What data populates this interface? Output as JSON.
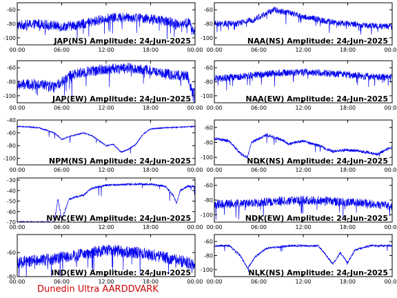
{
  "credit": "Dunedin Ultra AARDDVARK",
  "colors": {
    "trace": "#0000ee",
    "axes": "#000000",
    "credit": "#cc0000",
    "background": "#ffffff"
  },
  "chart_data": [
    {
      "type": "line",
      "title": "JAP(NS) Amplitude: 24-Jun-2025",
      "xlim": [
        0,
        24
      ],
      "xticks": [
        "00:00",
        "06:00",
        "12:00",
        "18:00",
        "00:00"
      ],
      "ylim": [
        -110,
        -50
      ],
      "yticks": [
        -60,
        -80,
        -100
      ],
      "series": [
        {
          "baseline": [
            [
              0,
              -82
            ],
            [
              3,
              -80
            ],
            [
              6,
              -84
            ],
            [
              8,
              -82
            ],
            [
              10,
              -78
            ],
            [
              12,
              -72
            ],
            [
              15,
              -70
            ],
            [
              18,
              -73
            ],
            [
              20,
              -76
            ],
            [
              22,
              -80
            ],
            [
              23.3,
              -78
            ],
            [
              23.6,
              -90
            ],
            [
              24,
              -90
            ]
          ],
          "spread": 14
        }
      ]
    },
    {
      "type": "line",
      "title": "NAA(NS) Amplitude: 24-Jun-2025",
      "xlim": [
        0,
        24
      ],
      "xticks": [
        "00:00",
        "06:00",
        "12:00",
        "18:00",
        "00:00"
      ],
      "ylim": [
        -110,
        -50
      ],
      "yticks": [
        -60,
        -80,
        -100
      ],
      "series": [
        {
          "baseline": [
            [
              0,
              -80
            ],
            [
              3,
              -80
            ],
            [
              5,
              -75
            ],
            [
              7,
              -66
            ],
            [
              8,
              -60
            ],
            [
              10,
              -64
            ],
            [
              12,
              -70
            ],
            [
              16,
              -78
            ],
            [
              20,
              -82
            ],
            [
              24,
              -84
            ]
          ],
          "spread": 9
        }
      ]
    },
    {
      "type": "line",
      "title": "JAP(EW) Amplitude: 24-Jun-2025",
      "xlim": [
        0,
        24
      ],
      "xticks": [
        "00:00",
        "06:00",
        "12:00",
        "18:00",
        "00:00"
      ],
      "ylim": [
        -110,
        -50
      ],
      "yticks": [
        -60,
        -80,
        -100
      ],
      "series": [
        {
          "baseline": [
            [
              0,
              -85
            ],
            [
              3,
              -83
            ],
            [
              5,
              -88
            ],
            [
              7,
              -72
            ],
            [
              9,
              -66
            ],
            [
              12,
              -62
            ],
            [
              15,
              -60
            ],
            [
              18,
              -64
            ],
            [
              21,
              -70
            ],
            [
              23,
              -72
            ],
            [
              23.6,
              -96
            ],
            [
              24,
              -96
            ]
          ],
          "spread": 15
        }
      ]
    },
    {
      "type": "line",
      "title": "NAA(EW) Amplitude: 24-Jun-2025",
      "xlim": [
        0,
        24
      ],
      "xticks": [
        "00:00",
        "06:00",
        "12:00",
        "18:00",
        "00:00"
      ],
      "ylim": [
        -110,
        -50
      ],
      "yticks": [
        -60,
        -80,
        -100
      ],
      "series": [
        {
          "baseline": [
            [
              0,
              -76
            ],
            [
              4,
              -72
            ],
            [
              8,
              -68
            ],
            [
              12,
              -66
            ],
            [
              16,
              -68
            ],
            [
              20,
              -72
            ],
            [
              24,
              -74
            ]
          ],
          "spread": 10
        }
      ]
    },
    {
      "type": "line",
      "title": "NPM(NS) Amplitude: 24-Jun-2025",
      "xlim": [
        0,
        24
      ],
      "xticks": [
        "00:00",
        "06:00",
        "12:00",
        "18:00",
        "00:00"
      ],
      "ylim": [
        -110,
        -40
      ],
      "yticks": [
        -40,
        -60,
        -80,
        -100
      ],
      "series": [
        {
          "baseline": [
            [
              0,
              -50
            ],
            [
              3,
              -52
            ],
            [
              5,
              -60
            ],
            [
              6,
              -70
            ],
            [
              7,
              -66
            ],
            [
              9,
              -60
            ],
            [
              10,
              -64
            ],
            [
              12,
              -80
            ],
            [
              13,
              -78
            ],
            [
              14,
              -90
            ],
            [
              15,
              -86
            ],
            [
              16,
              -78
            ],
            [
              17,
              -62
            ],
            [
              18,
              -54
            ],
            [
              20,
              -52
            ],
            [
              22,
              -51
            ],
            [
              24,
              -50
            ]
          ],
          "spread": 2
        }
      ]
    },
    {
      "type": "line",
      "title": "NDK(NS) Amplitude: 24-Jun-2025",
      "xlim": [
        0,
        24
      ],
      "xticks": [
        "00:00",
        "06:00",
        "12:00",
        "18:00",
        "00:00"
      ],
      "ylim": [
        -110,
        -50
      ],
      "yticks": [
        -60,
        -80,
        -100
      ],
      "series": [
        {
          "baseline": [
            [
              0,
              -75
            ],
            [
              2,
              -78
            ],
            [
              3.5,
              -95
            ],
            [
              4.5,
              -100
            ],
            [
              5,
              -80
            ],
            [
              7,
              -70
            ],
            [
              9,
              -76
            ],
            [
              10,
              -82
            ],
            [
              12,
              -78
            ],
            [
              14,
              -84
            ],
            [
              16,
              -92
            ],
            [
              18,
              -90
            ],
            [
              20,
              -92
            ],
            [
              22,
              -96
            ],
            [
              24,
              -86
            ]
          ],
          "spread": 4
        }
      ]
    },
    {
      "type": "line",
      "title": "NWC(EW) Amplitude: 24-Jun-2025",
      "xlim": [
        0,
        24
      ],
      "xticks": [
        "00:00",
        "06:00",
        "12:00",
        "18:00",
        "00:00"
      ],
      "ylim": [
        -70,
        -28
      ],
      "yticks": [
        -30,
        -40,
        -50,
        -60,
        -70
      ],
      "series": [
        {
          "baseline": [
            [
              0,
              -70
            ],
            [
              5,
              -70
            ],
            [
              5.5,
              -48
            ],
            [
              6,
              -68
            ],
            [
              7,
              -48
            ],
            [
              8,
              -46
            ],
            [
              9,
              -44
            ],
            [
              10,
              -38
            ],
            [
              12,
              -35
            ],
            [
              15,
              -34
            ],
            [
              18,
              -34
            ],
            [
              20,
              -36
            ],
            [
              21,
              -44
            ],
            [
              21.5,
              -52
            ],
            [
              22,
              -40
            ],
            [
              23,
              -36
            ],
            [
              24,
              -36
            ]
          ],
          "spread": 2
        }
      ]
    },
    {
      "type": "line",
      "title": "NDK(EW) Amplitude: 24-Jun-2025",
      "xlim": [
        0,
        24
      ],
      "xticks": [
        "00:00",
        "06:00",
        "12:00",
        "18:00",
        "00:00"
      ],
      "ylim": [
        -110,
        -50
      ],
      "yticks": [
        -60,
        -80,
        -100
      ],
      "series": [
        {
          "baseline": [
            [
              0,
              -86
            ],
            [
              4,
              -84
            ],
            [
              8,
              -82
            ],
            [
              12,
              -80
            ],
            [
              16,
              -82
            ],
            [
              20,
              -84
            ],
            [
              24,
              -88
            ]
          ],
          "spread": 12
        }
      ]
    },
    {
      "type": "line",
      "title": "IND(EW) Amplitude: 24-Jun-2025",
      "xlim": [
        0,
        24
      ],
      "xticks": [
        "00:00",
        "06:00",
        "12:00",
        "18:00",
        "00:00"
      ],
      "ylim": [
        -80,
        -45
      ],
      "yticks": [
        -60,
        -80
      ],
      "series": [
        {
          "baseline": [
            [
              0,
              -68
            ],
            [
              4,
              -66
            ],
            [
              8,
              -62
            ],
            [
              12,
              -58
            ],
            [
              16,
              -60
            ],
            [
              20,
              -64
            ],
            [
              24,
              -70
            ]
          ],
          "spread": 10
        }
      ]
    },
    {
      "type": "line",
      "title": "NLK(NS) Amplitude: 24-Jun-2025",
      "xlim": [
        0,
        24
      ],
      "xticks": [
        "00:00",
        "06:00",
        "12:00",
        "18:00",
        "00:00"
      ],
      "ylim": [
        -110,
        -50
      ],
      "yticks": [
        -60,
        -80,
        -100
      ],
      "series": [
        {
          "baseline": [
            [
              0,
              -66
            ],
            [
              2,
              -66
            ],
            [
              3.5,
              -80
            ],
            [
              4.5,
              -98
            ],
            [
              5.5,
              -82
            ],
            [
              7,
              -70
            ],
            [
              10,
              -66
            ],
            [
              14,
              -66
            ],
            [
              15,
              -78
            ],
            [
              16,
              -92
            ],
            [
              17,
              -76
            ],
            [
              18,
              -90
            ],
            [
              19,
              -72
            ],
            [
              21,
              -66
            ],
            [
              24,
              -66
            ]
          ],
          "spread": 3
        }
      ]
    }
  ]
}
